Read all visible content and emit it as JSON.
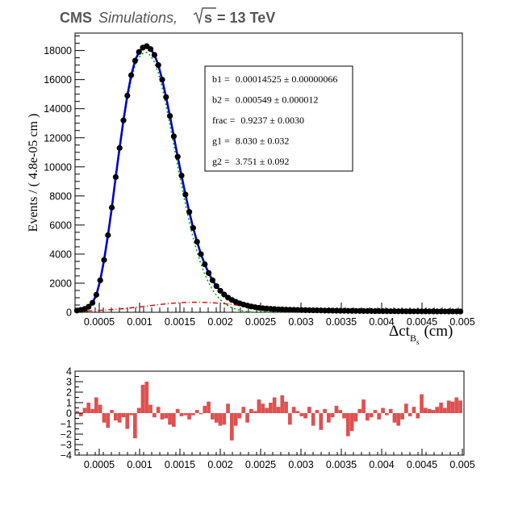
{
  "header": {
    "cms": "CMS",
    "simulations": "Simulations,",
    "sqrt_s": "s",
    "energy": "= 13 TeV"
  },
  "stats_box": [
    {
      "name": "b1",
      "value": "0.00014525 ± 0.00000066"
    },
    {
      "name": "b2",
      "value": "0.000549 ± 0.000012"
    },
    {
      "name": "frac",
      "value": "0.9237 ± 0.0030"
    },
    {
      "name": "g1",
      "value": "8.030 ± 0.032"
    },
    {
      "name": "g2",
      "value": "3.751 ± 0.092"
    }
  ],
  "colors": {
    "total_fit": "#0000cc",
    "data_points": "#000000",
    "main_component": "#00aa00",
    "background_component": "#dd0000",
    "pull_bars": "#e05050"
  },
  "chart_data": [
    {
      "type": "scatter",
      "title": "",
      "xlabel": "Δct",
      "xlabel_subscript": "B",
      "xlabel_subsubscript": "s",
      "xlabel_unit": "(cm)",
      "ylabel": "Events / ( 4.8e-05 cm )",
      "xlim": [
        0.0002,
        0.005
      ],
      "ylim": [
        0,
        19200
      ],
      "x_ticks": [
        0.0005,
        0.001,
        0.0015,
        0.002,
        0.0025,
        0.003,
        0.0035,
        0.004,
        0.0045,
        0.005
      ],
      "x_tick_labels": [
        "0.0005",
        "0.001",
        "0.0015",
        "0.002",
        "0.0025",
        "0.003",
        "0.0035",
        "0.004",
        "0.0045",
        "0.005"
      ],
      "y_ticks": [
        0,
        2000,
        4000,
        6000,
        8000,
        10000,
        12000,
        14000,
        16000,
        18000
      ],
      "y_tick_labels": [
        "0",
        "2000",
        "4000",
        "6000",
        "8000",
        "10000",
        "12000",
        "14000",
        "16000",
        "18000"
      ],
      "series": [
        {
          "x": [
            0.000224,
            0.000272,
            0.00032,
            0.000368,
            0.000416,
            0.000464,
            0.000512,
            0.00056,
            0.000608,
            0.000656,
            0.000704,
            0.000752,
            0.0008,
            0.000848,
            0.000896,
            0.000944,
            0.000992,
            0.00104,
            0.001088,
            0.001136,
            0.001184,
            0.001232,
            0.00128,
            0.001328,
            0.001376,
            0.001424,
            0.001472,
            0.00152,
            0.001568,
            0.001616,
            0.001664,
            0.001712,
            0.00176,
            0.001808,
            0.001856,
            0.001904,
            0.001952,
            0.002,
            0.002048,
            0.002096,
            0.002144,
            0.002192,
            0.00224,
            0.002288,
            0.002336,
            0.002384,
            0.002432,
            0.00248,
            0.002528,
            0.002576,
            0.002624,
            0.002672,
            0.00272,
            0.002768,
            0.002816,
            0.002864,
            0.002912,
            0.00296,
            0.003008,
            0.003056,
            0.003104,
            0.003152,
            0.0032,
            0.003248,
            0.003296,
            0.003344,
            0.003392,
            0.00344,
            0.003488,
            0.003536,
            0.003584,
            0.003632,
            0.00368,
            0.003728,
            0.003776,
            0.003824,
            0.003872,
            0.00392,
            0.003968,
            0.004016,
            0.004064,
            0.004112,
            0.00416,
            0.004208,
            0.004256,
            0.004304,
            0.004352,
            0.0044,
            0.004448,
            0.004496,
            0.004544,
            0.004592,
            0.00464,
            0.004688,
            0.004736,
            0.004784,
            0.004832,
            0.00488,
            0.004928,
            0.004976
          ],
          "y": [
            120,
            160,
            230,
            380,
            650,
            1200,
            2200,
            3600,
            5300,
            7200,
            9300,
            11300,
            13200,
            14900,
            16300,
            17300,
            17900,
            18200,
            18300,
            18100,
            17700,
            17000,
            16000,
            14800,
            13500,
            12100,
            10700,
            9400,
            8100,
            6900,
            5800,
            4850,
            4000,
            3300,
            2700,
            2200,
            1800,
            1480,
            1220,
            1010,
            850,
            720,
            615,
            530,
            460,
            400,
            350,
            310,
            280,
            255,
            235,
            220,
            205,
            195,
            185,
            175,
            168,
            160,
            152,
            145,
            140,
            135,
            130,
            125,
            120,
            116,
            112,
            108,
            105,
            102,
            99,
            96,
            93,
            90,
            88,
            86,
            84,
            82,
            80,
            78,
            76,
            74,
            72,
            70,
            69,
            68,
            67,
            66,
            65,
            64,
            63,
            62,
            61,
            60,
            59,
            58,
            57,
            56,
            55,
            54
          ]
        }
      ]
    },
    {
      "type": "bar",
      "title": "",
      "xlim": [
        0.0002,
        0.005
      ],
      "ylim": [
        -4,
        4
      ],
      "x_ticks": [
        0.0005,
        0.001,
        0.0015,
        0.002,
        0.0025,
        0.003,
        0.0035,
        0.004,
        0.0045,
        0.005
      ],
      "x_tick_labels": [
        "0.0005",
        "0.001",
        "0.0015",
        "0.002",
        "0.0025",
        "0.003",
        "0.0035",
        "0.004",
        "0.0045",
        "0.005"
      ],
      "y_ticks": [
        -4,
        -3,
        -2,
        -1,
        0,
        1,
        2,
        3,
        4
      ],
      "y_tick_labels": [
        "−4",
        "−3",
        "−2",
        "−1",
        "0",
        "1",
        "2",
        "3",
        "4"
      ],
      "x": [
        0.000224,
        0.000272,
        0.00032,
        0.000368,
        0.000416,
        0.000464,
        0.000512,
        0.00056,
        0.000608,
        0.000656,
        0.000704,
        0.000752,
        0.0008,
        0.000848,
        0.000896,
        0.000944,
        0.000992,
        0.00104,
        0.001088,
        0.001136,
        0.001184,
        0.001232,
        0.00128,
        0.001328,
        0.001376,
        0.001424,
        0.001472,
        0.00152,
        0.001568,
        0.001616,
        0.001664,
        0.001712,
        0.00176,
        0.001808,
        0.001856,
        0.001904,
        0.001952,
        0.002,
        0.002048,
        0.002096,
        0.002144,
        0.002192,
        0.00224,
        0.002288,
        0.002336,
        0.002384,
        0.002432,
        0.00248,
        0.002528,
        0.002576,
        0.002624,
        0.002672,
        0.00272,
        0.002768,
        0.002816,
        0.002864,
        0.002912,
        0.00296,
        0.003008,
        0.003056,
        0.003104,
        0.003152,
        0.0032,
        0.003248,
        0.003296,
        0.003344,
        0.003392,
        0.00344,
        0.003488,
        0.003536,
        0.003584,
        0.003632,
        0.00368,
        0.003728,
        0.003776,
        0.003824,
        0.003872,
        0.00392,
        0.003968,
        0.004016,
        0.004064,
        0.004112,
        0.00416,
        0.004208,
        0.004256,
        0.004304,
        0.004352,
        0.0044,
        0.004448,
        0.004496,
        0.004544,
        0.004592,
        0.00464,
        0.004688,
        0.004736,
        0.004784,
        0.004832,
        0.00488,
        0.004928,
        0.004976
      ],
      "values": [
        0.2,
        -0.3,
        0.5,
        1.0,
        0.4,
        1.5,
        0.8,
        -0.9,
        -1.4,
        0.3,
        -0.7,
        -0.9,
        -0.4,
        -1.5,
        -0.2,
        -2.4,
        0.5,
        2.7,
        3.0,
        0.8,
        -0.4,
        0.6,
        -0.6,
        -0.5,
        -1.1,
        -1.3,
        0.4,
        -0.3,
        -0.2,
        -0.6,
        -0.2,
        0.3,
        -0.1,
        0.7,
        1.1,
        -0.6,
        -0.9,
        -1.2,
        -1.1,
        0.9,
        -2.6,
        -1.2,
        -0.5,
        0.6,
        -0.9,
        0.4,
        0.2,
        1.3,
        0.9,
        0.5,
        1.0,
        1.5,
        0.6,
        1.7,
        1.1,
        -1.1,
        0.6,
        0.2,
        -0.3,
        -0.5,
        0.6,
        -1.2,
        0.3,
        -1.6,
        0.4,
        -0.9,
        -0.4,
        0.7,
        0.3,
        -0.5,
        -2.2,
        -1.7,
        -0.8,
        0.4,
        1.3,
        -0.7,
        -0.4,
        0.3,
        -0.6,
        0.5,
        -0.2,
        0.4,
        -0.9,
        -1.2,
        -0.6,
        0.9,
        -0.3,
        0.6,
        -0.5,
        1.8,
        0.5,
        0.4,
        0.3,
        0.6,
        1.0,
        0.5,
        1.2,
        1.1,
        1.5,
        1.2
      ]
    }
  ]
}
